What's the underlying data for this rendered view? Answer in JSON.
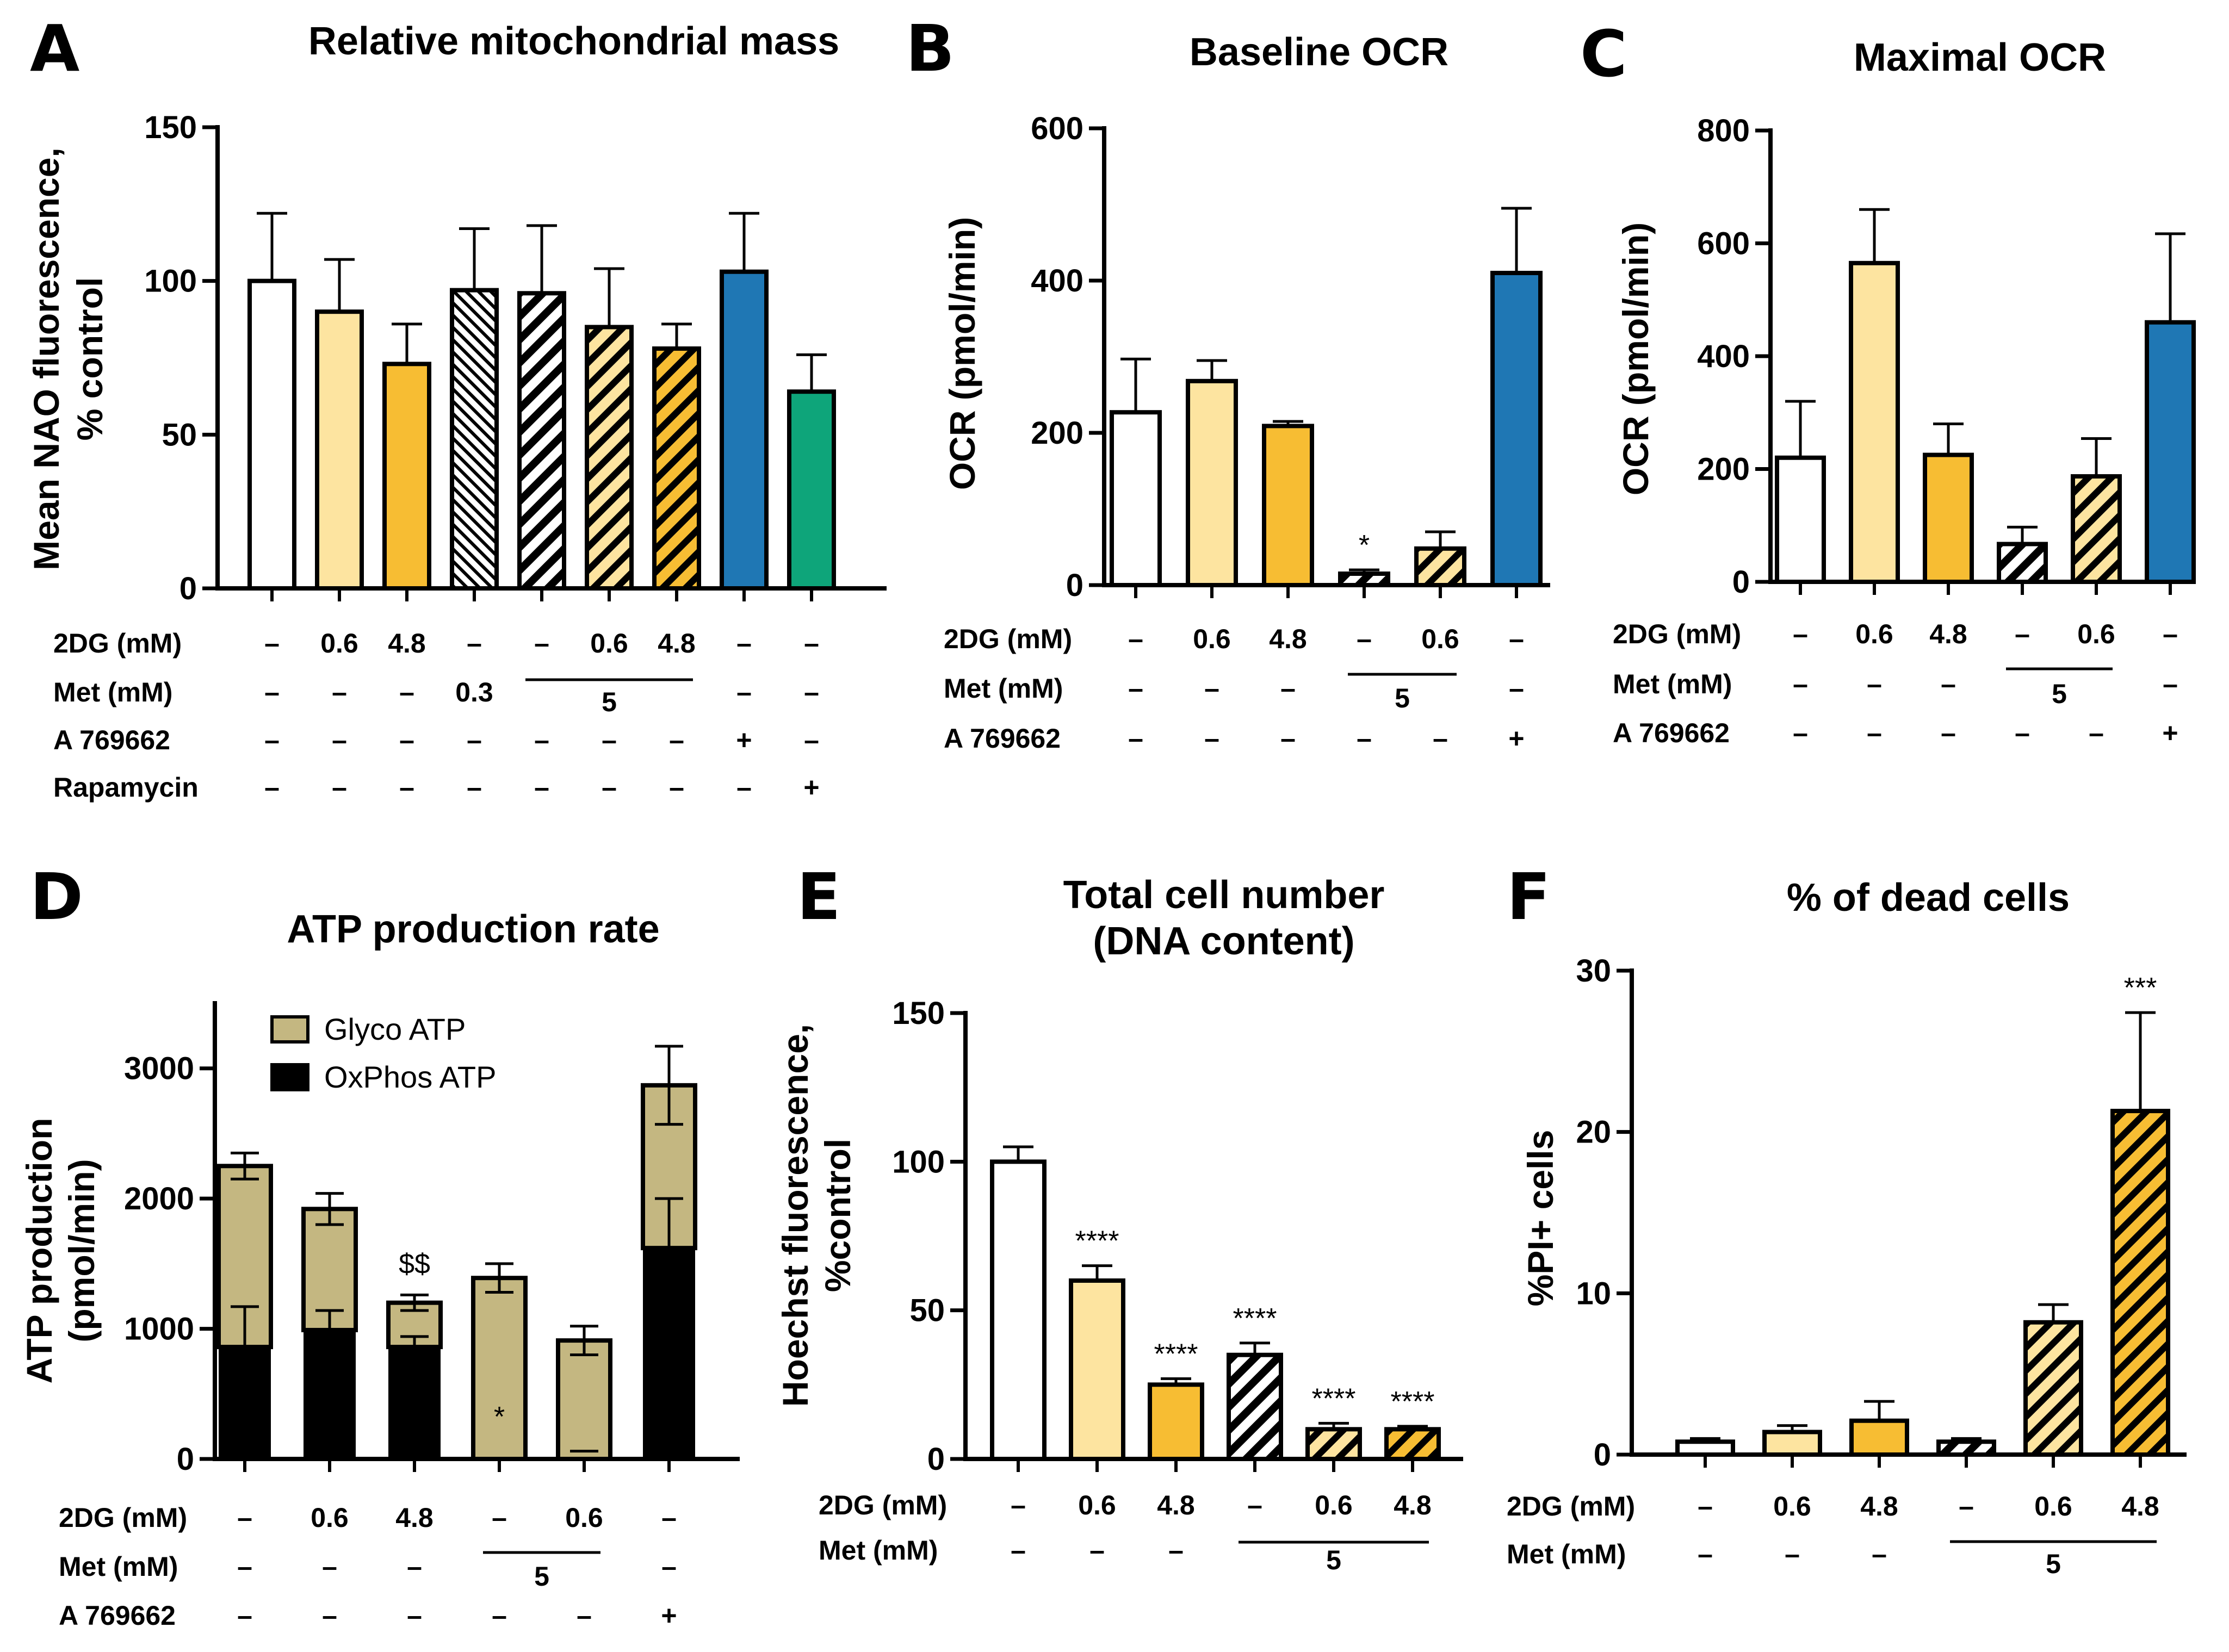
{
  "colors": {
    "white": "#ffffff",
    "light_yellow": "#fde4a0",
    "orange": "#f7bd33",
    "blue": "#1f77b4",
    "green": "#0ea57a",
    "glyco": "#c4b781",
    "black": "#000000"
  },
  "chart_data": [
    {
      "panel": "A",
      "type": "bar",
      "title": "Relative mitochondrial mass",
      "ylabel": [
        "Mean NAO fluorescence,",
        "% control"
      ],
      "ylim": [
        0,
        150
      ],
      "yticks": [
        "0",
        "50",
        "100",
        "150"
      ],
      "values": [
        100,
        90,
        73,
        97,
        96,
        85,
        78,
        103,
        64
      ],
      "errors": [
        22,
        17,
        13,
        20,
        22,
        19,
        8,
        19,
        12
      ],
      "fills": [
        "white",
        "light_yellow",
        "orange",
        "white",
        "white",
        "light_yellow",
        "orange",
        "blue",
        "green"
      ],
      "patterns": [
        "",
        "",
        "",
        "hatch-fine",
        "hatch",
        "hatch",
        "hatch",
        "",
        ""
      ],
      "annotations": [
        "",
        "",
        "",
        "",
        "",
        "",
        "",
        "",
        ""
      ],
      "conditions": [
        {
          "label": "2DG (mM)",
          "values": [
            "–",
            "0.6",
            "4.8",
            "–",
            "–",
            "0.6",
            "4.8",
            "–",
            "–"
          ]
        },
        {
          "label": "Met (mM)",
          "values": [
            "–",
            "–",
            "–",
            "0.3",
            "",
            "5",
            "",
            "–",
            "–"
          ],
          "group_line": [
            4,
            6
          ]
        },
        {
          "label": "A 769662",
          "values": [
            "–",
            "–",
            "–",
            "–",
            "–",
            "–",
            "–",
            "+",
            "–"
          ]
        },
        {
          "label": "Rapamycin",
          "values": [
            "–",
            "–",
            "–",
            "–",
            "–",
            "–",
            "–",
            "–",
            "+"
          ]
        }
      ]
    },
    {
      "panel": "B",
      "type": "bar",
      "title": "Baseline OCR",
      "ylabel": [
        "OCR (pmol/min)"
      ],
      "ylim": [
        0,
        600
      ],
      "yticks": [
        "0",
        "200",
        "400",
        "600"
      ],
      "values": [
        227,
        268,
        209,
        15,
        48,
        410
      ],
      "errors": [
        70,
        27,
        6,
        5,
        22,
        85
      ],
      "fills": [
        "white",
        "light_yellow",
        "orange",
        "white",
        "light_yellow",
        "blue"
      ],
      "patterns": [
        "",
        "",
        "",
        "hatch",
        "hatch",
        ""
      ],
      "annotations": [
        "",
        "",
        "",
        "*",
        "",
        ""
      ],
      "conditions": [
        {
          "label": "2DG (mM)",
          "values": [
            "–",
            "0.6",
            "4.8",
            "–",
            "0.6",
            "–"
          ]
        },
        {
          "label": "Met (mM)",
          "values": [
            "–",
            "–",
            "–",
            "",
            "5",
            "–"
          ],
          "group_line": [
            3,
            4
          ]
        },
        {
          "label": "A 769662",
          "values": [
            "–",
            "–",
            "–",
            "–",
            "–",
            "+"
          ]
        }
      ]
    },
    {
      "panel": "C",
      "type": "bar",
      "title": "Maximal OCR",
      "ylabel": [
        "OCR (pmol/min)"
      ],
      "ylim": [
        0,
        800
      ],
      "yticks": [
        "0",
        "200",
        "400",
        "600",
        "800"
      ],
      "values": [
        220,
        565,
        225,
        67,
        187,
        460
      ],
      "errors": [
        100,
        95,
        55,
        30,
        67,
        157
      ],
      "fills": [
        "white",
        "light_yellow",
        "orange",
        "white",
        "light_yellow",
        "blue"
      ],
      "patterns": [
        "",
        "",
        "",
        "hatch",
        "hatch",
        ""
      ],
      "annotations": [
        "",
        "",
        "",
        "",
        "",
        ""
      ],
      "conditions": [
        {
          "label": "2DG (mM)",
          "values": [
            "–",
            "0.6",
            "4.8",
            "–",
            "0.6",
            "–"
          ]
        },
        {
          "label": "Met (mM)",
          "values": [
            "–",
            "–",
            "–",
            "",
            "5",
            "–"
          ],
          "group_line": [
            3,
            4
          ]
        },
        {
          "label": "A 769662",
          "values": [
            "–",
            "–",
            "–",
            "–",
            "–",
            "+"
          ]
        }
      ]
    },
    {
      "panel": "D",
      "type": "stacked_bar",
      "title": "ATP production rate",
      "ylabel": [
        "ATP production",
        "(pmol/min)"
      ],
      "ylim": [
        0,
        3500
      ],
      "yticks": [
        "0",
        "1000",
        "2000",
        "3000"
      ],
      "series": [
        {
          "name": "Glyco ATP",
          "values": [
            1390,
            930,
            340,
            1390,
            910,
            1250
          ],
          "errors": [
            100,
            120,
            60,
            110,
            110,
            300
          ]
        },
        {
          "name": "OxPhos ATP",
          "values": [
            860,
            990,
            860,
            0,
            0,
            1620
          ],
          "errors": [
            310,
            150,
            80,
            0,
            0,
            380
          ]
        }
      ],
      "annotations": [
        "",
        "",
        "$$",
        "*",
        "",
        ""
      ],
      "conditions": [
        {
          "label": "2DG (mM)",
          "values": [
            "–",
            "0.6",
            "4.8",
            "–",
            "0.6",
            "–"
          ]
        },
        {
          "label": "Met (mM)",
          "values": [
            "–",
            "–",
            "–",
            "",
            "5",
            "–"
          ],
          "group_line": [
            3,
            4
          ]
        },
        {
          "label": "A 769662",
          "values": [
            "–",
            "–",
            "–",
            "–",
            "–",
            "+"
          ]
        }
      ]
    },
    {
      "panel": "E",
      "type": "bar",
      "title": [
        "Total cell number",
        "(DNA content)"
      ],
      "ylabel": [
        "Hoechst fluorescence,",
        "%control"
      ],
      "ylim": [
        0,
        150
      ],
      "yticks": [
        "0",
        "50",
        "100",
        "150"
      ],
      "values": [
        100,
        60,
        25,
        35,
        10,
        10
      ],
      "errors": [
        5,
        5,
        2,
        4,
        2,
        1
      ],
      "fills": [
        "white",
        "light_yellow",
        "orange",
        "white",
        "light_yellow",
        "orange"
      ],
      "patterns": [
        "",
        "",
        "",
        "hatch",
        "hatch",
        "hatch"
      ],
      "annotations": [
        "",
        "****",
        "****",
        "****",
        "****",
        "****"
      ],
      "conditions": [
        {
          "label": "2DG (mM)",
          "values": [
            "–",
            "0.6",
            "4.8",
            "–",
            "0.6",
            "4.8"
          ]
        },
        {
          "label": "Met (mM)",
          "values": [
            "–",
            "–",
            "–",
            "",
            "5",
            ""
          ],
          "group_line": [
            3,
            5
          ]
        }
      ]
    },
    {
      "panel": "F",
      "type": "bar",
      "title": "% of dead cells",
      "ylabel": [
        "%PI+ cells"
      ],
      "ylim": [
        0,
        30
      ],
      "yticks": [
        "0",
        "10",
        "20",
        "30"
      ],
      "values": [
        0.8,
        1.4,
        2.1,
        0.8,
        8.2,
        21.3
      ],
      "errors": [
        0.2,
        0.4,
        1.2,
        0.2,
        1.1,
        6.1
      ],
      "fills": [
        "white",
        "light_yellow",
        "orange",
        "white",
        "light_yellow",
        "orange"
      ],
      "patterns": [
        "",
        "",
        "",
        "hatch",
        "hatch",
        "hatch"
      ],
      "annotations": [
        "",
        "",
        "",
        "",
        "",
        "***"
      ],
      "conditions": [
        {
          "label": "2DG (mM)",
          "values": [
            "–",
            "0.6",
            "4.8",
            "–",
            "0.6",
            "4.8"
          ]
        },
        {
          "label": "Met (mM)",
          "values": [
            "–",
            "–",
            "–",
            "",
            "5",
            ""
          ],
          "group_line": [
            3,
            5
          ]
        }
      ]
    }
  ]
}
